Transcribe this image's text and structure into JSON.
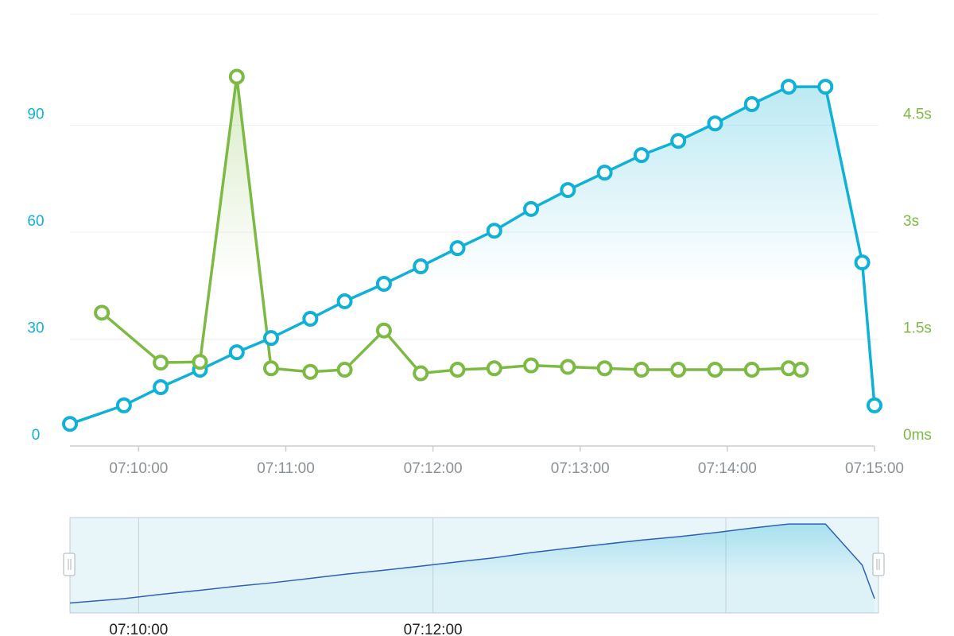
{
  "chart_data": {
    "type": "line",
    "xlim": [
      "07:09:32",
      "07:15:00"
    ],
    "xticks": [
      "07:10:00",
      "07:11:00",
      "07:12:00",
      "07:13:00",
      "07:14:00",
      "07:15:00"
    ],
    "ylim": [
      0,
      120
    ],
    "yticks": [
      0,
      30,
      60,
      90
    ],
    "y2lim": [
      0,
      6
    ],
    "y2ticks": [
      {
        "value": 0,
        "label": "0ms"
      },
      {
        "value": 1.5,
        "label": "1.5s"
      },
      {
        "value": 3,
        "label": "3s"
      },
      {
        "value": 4.5,
        "label": "4.5s"
      }
    ],
    "grid": true,
    "series": [
      {
        "color": "#0fb1d6",
        "area": true,
        "x": [
          "07:09:32",
          "07:09:54",
          "07:10:09",
          "07:10:25",
          "07:10:40",
          "07:10:54",
          "07:11:10",
          "07:11:24",
          "07:11:40",
          "07:11:55",
          "07:12:10",
          "07:12:25",
          "07:12:40",
          "07:12:55",
          "07:13:10",
          "07:13:25",
          "07:13:40",
          "07:13:55",
          "07:14:10",
          "07:14:25",
          "07:14:40",
          "07:14:55",
          "07:15:00"
        ],
        "values": [
          6.2,
          11.4,
          16.5,
          21.4,
          26.3,
          30.3,
          35.7,
          40.6,
          45.5,
          50.4,
          55.5,
          60.4,
          66.5,
          71.8,
          76.7,
          81.6,
          85.6,
          90.5,
          95.9,
          100.8,
          100.8,
          51.5,
          11.4
        ]
      },
      {
        "color": "#7dba43",
        "axis": "y2",
        "area": true,
        "x": [
          "07:09:45",
          "07:10:09",
          "07:10:25",
          "07:10:40",
          "07:10:54",
          "07:11:10",
          "07:11:24",
          "07:11:40",
          "07:11:55",
          "07:12:10",
          "07:12:25",
          "07:12:40",
          "07:12:55",
          "07:13:10",
          "07:13:25",
          "07:13:40",
          "07:13:55",
          "07:14:10",
          "07:14:25",
          "07:14:30"
        ],
        "values": [
          1.87,
          1.17,
          1.18,
          5.18,
          1.09,
          1.04,
          1.07,
          1.62,
          1.02,
          1.07,
          1.09,
          1.13,
          1.11,
          1.09,
          1.07,
          1.07,
          1.07,
          1.07,
          1.09,
          1.07
        ]
      }
    ],
    "zoom": {
      "xticks": [
        "07:10:00",
        "07:12:00"
      ]
    }
  }
}
